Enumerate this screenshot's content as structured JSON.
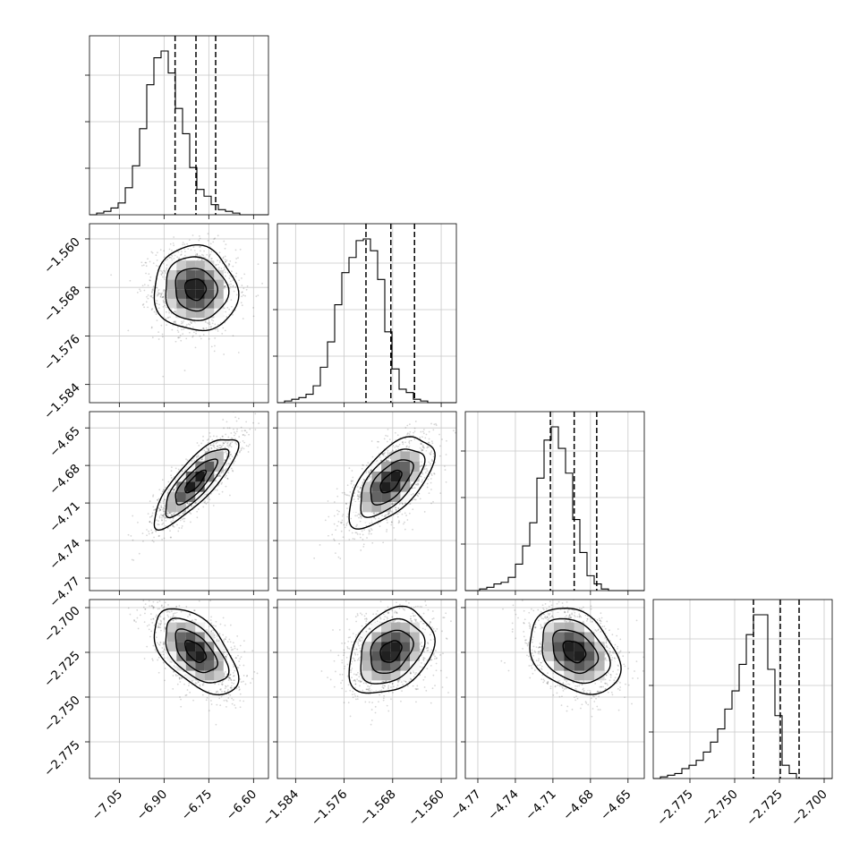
{
  "chart_data": {
    "type": "corner",
    "grid": true,
    "parameters": [
      {
        "index": 0,
        "range": [
          -7.15,
          -6.55
        ],
        "ticks": [
          -7.05,
          -6.9,
          -6.75,
          -6.6
        ],
        "tick_labels": [
          "−7.05",
          "−6.90",
          "−6.75",
          "−6.60"
        ],
        "quantiles": [
          -6.863,
          -6.793,
          -6.727
        ],
        "histogram": {
          "bin_edges_start": -7.15,
          "bin_width": 0.024,
          "counts": [
            0.0,
            0.01,
            0.02,
            0.04,
            0.07,
            0.16,
            0.29,
            0.51,
            0.77,
            0.93,
            0.97,
            0.84,
            0.63,
            0.48,
            0.28,
            0.15,
            0.11,
            0.06,
            0.03,
            0.02,
            0.01,
            0.0,
            0.0,
            0.0,
            0.0
          ]
        }
      },
      {
        "index": 1,
        "range": [
          -1.587,
          -1.5575
        ],
        "ticks": [
          -1.584,
          -1.576,
          -1.568,
          -1.56
        ],
        "tick_labels": [
          "−1.584",
          "−1.576",
          "−1.568",
          "−1.560"
        ],
        "quantiles": [
          -1.5724,
          -1.5683,
          -1.5644
        ],
        "histogram": {
          "bin_edges_start": -1.587,
          "bin_width": 0.00118,
          "counts": [
            0.0,
            0.01,
            0.02,
            0.03,
            0.05,
            0.1,
            0.21,
            0.36,
            0.58,
            0.77,
            0.86,
            0.96,
            0.97,
            0.9,
            0.73,
            0.42,
            0.2,
            0.08,
            0.06,
            0.02,
            0.01,
            0.0,
            0.0,
            0.0,
            0.0
          ]
        }
      },
      {
        "index": 2,
        "range": [
          -4.78,
          -4.637
        ],
        "ticks": [
          -4.77,
          -4.74,
          -4.71,
          -4.68,
          -4.65
        ],
        "tick_labels": [
          "−4.77",
          "−4.74",
          "−4.71",
          "−4.68",
          "−4.65"
        ],
        "quantiles": [
          -4.712,
          -4.693,
          -4.675
        ],
        "histogram": {
          "bin_edges_start": -4.78,
          "bin_width": 0.00572,
          "counts": [
            0.0,
            0.0,
            0.01,
            0.02,
            0.04,
            0.05,
            0.08,
            0.16,
            0.27,
            0.41,
            0.68,
            0.91,
            0.99,
            0.86,
            0.71,
            0.43,
            0.23,
            0.09,
            0.04,
            0.01,
            0.0,
            0.0,
            0.0,
            0.0,
            0.0
          ]
        }
      },
      {
        "index": 3,
        "range": [
          -2.7955,
          -2.6955
        ],
        "ticks": [
          -2.775,
          -2.75,
          -2.725,
          -2.7
        ],
        "tick_labels": [
          "−2.775",
          "−2.750",
          "−2.725",
          "−2.700"
        ],
        "quantiles": [
          -2.7395,
          -2.7245,
          -2.714
        ],
        "histogram": {
          "bin_edges_start": -2.7955,
          "bin_width": 0.004,
          "counts": [
            0.0,
            0.01,
            0.02,
            0.03,
            0.06,
            0.08,
            0.11,
            0.16,
            0.22,
            0.3,
            0.42,
            0.53,
            0.69,
            0.87,
            0.99,
            0.99,
            0.66,
            0.38,
            0.08,
            0.03,
            0.0,
            0.0,
            0.0,
            0.0,
            0.0
          ]
        }
      }
    ],
    "covariance_panels": [
      {
        "row": 1,
        "col": 0,
        "mean": [
          -6.795,
          -1.5683
        ],
        "sd": [
          0.07,
          0.0035
        ],
        "corr": -0.05
      },
      {
        "row": 2,
        "col": 0,
        "mean": [
          -6.795,
          -4.693
        ],
        "sd": [
          0.07,
          0.018
        ],
        "corr": 0.82
      },
      {
        "row": 2,
        "col": 1,
        "mean": [
          -1.5683,
          -4.693
        ],
        "sd": [
          0.0035,
          0.018
        ],
        "corr": 0.62
      },
      {
        "row": 3,
        "col": 0,
        "mean": [
          -6.795,
          -2.7245
        ],
        "sd": [
          0.07,
          0.012
        ],
        "corr": -0.55
      },
      {
        "row": 3,
        "col": 1,
        "mean": [
          -1.5683,
          -2.7245
        ],
        "sd": [
          0.0035,
          0.012
        ],
        "corr": 0.3
      },
      {
        "row": 3,
        "col": 2,
        "mean": [
          -4.693,
          -2.7245
        ],
        "sd": [
          0.018,
          0.012
        ],
        "corr": -0.32
      }
    ],
    "contour_levels_sigma": [
      0.5,
      1.0,
      1.5,
      2.0
    ]
  }
}
